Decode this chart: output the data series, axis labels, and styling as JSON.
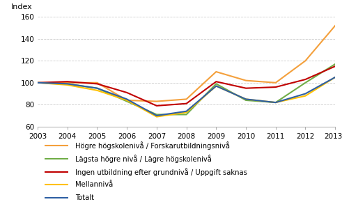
{
  "years": [
    2003,
    2004,
    2005,
    2006,
    2007,
    2008,
    2009,
    2010,
    2011,
    2012,
    2013
  ],
  "series": {
    "hogre": [
      100,
      100,
      100,
      84,
      83,
      85,
      110,
      102,
      100,
      120,
      152
    ],
    "lagsta": [
      100,
      99,
      95,
      83,
      71,
      71,
      99,
      84,
      82,
      100,
      117
    ],
    "ingen": [
      100,
      101,
      99,
      91,
      79,
      81,
      101,
      95,
      96,
      103,
      115
    ],
    "mellanniva": [
      100,
      98,
      93,
      84,
      69,
      73,
      97,
      85,
      82,
      88,
      105
    ],
    "totalt": [
      100,
      99,
      95,
      85,
      70,
      74,
      97,
      85,
      82,
      90,
      105
    ]
  },
  "colors": {
    "hogre": "#F4A03C",
    "lagsta": "#70AD47",
    "ingen": "#C00000",
    "mellanniva": "#FFC000",
    "totalt": "#2E5FA3"
  },
  "labels": {
    "hogre": "Högre högskolenivå / Forskarutbildningsnivå",
    "lagsta": "Lägsta högre nivå / Lägre högskolenivå",
    "ingen": "Ingen utbildning efter grundnivå / Uppgift saknas",
    "mellanniva": "Mellannivå",
    "totalt": "Totalt"
  },
  "ylabel": "Index",
  "ylim": [
    60,
    160
  ],
  "yticks": [
    60,
    80,
    100,
    120,
    140,
    160
  ],
  "xtick_labels": [
    "2003",
    "2004",
    "2005",
    "2006",
    "2007",
    "2008",
    "2009",
    "2010",
    "2011",
    "2012",
    "2013*"
  ],
  "grid_color": "#CCCCCC",
  "linewidth": 1.5,
  "legend_fontsize": 7.2,
  "ylabel_fontsize": 8,
  "tick_fontsize": 7.5
}
